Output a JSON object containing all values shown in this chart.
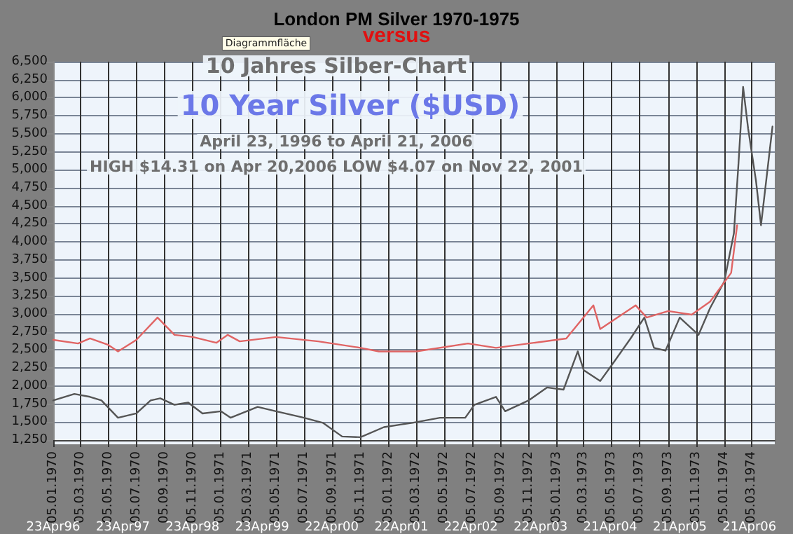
{
  "chart_data": {
    "type": "line",
    "title": "London PM Silver 1970-1975",
    "subtitle": "versus",
    "annotations": [
      "Diagrammfläche",
      "10 Jahres Silber-Chart",
      "10 Year Silver ($USD)",
      "April 23, 1996 to April 21, 2006",
      "HIGH $14.31 on Apr 20,2006 LOW $4.07 on Nov 22, 2001"
    ],
    "series": [
      {
        "color": "#555555",
        "x": [
          "1970-01-05",
          "1970-02-20",
          "1970-03-26",
          "1970-04-20",
          "1970-05-26",
          "1970-07-05",
          "1970-08-05",
          "1970-08-26",
          "1970-09-26",
          "1970-10-26",
          "1970-11-26",
          "1971-01-05",
          "1971-01-26",
          "1971-03-26",
          "1971-05-05",
          "1971-07-05",
          "1971-08-15",
          "1971-09-26",
          "1971-11-05",
          "1971-12-26",
          "1972-02-05",
          "1972-02-26",
          "1972-04-26",
          "1972-06-20",
          "1972-07-10",
          "1972-08-26",
          "1972-09-15",
          "1972-11-05",
          "1972-12-15",
          "1973-01-20",
          "1973-02-20",
          "1973-03-05",
          "1973-04-10",
          "1973-05-05",
          "1973-06-15",
          "1973-07-15",
          "1973-08-05",
          "1973-08-30",
          "1973-09-30",
          "1973-11-10",
          "1973-12-05",
          "1974-01-05",
          "1974-01-26",
          "1974-02-05",
          "1974-02-15",
          "1974-02-26",
          "1974-03-15",
          "1974-03-26",
          "1974-04-20"
        ],
        "values": [
          1800,
          1890,
          1850,
          1800,
          1560,
          1620,
          1800,
          1830,
          1740,
          1770,
          1620,
          1650,
          1560,
          1710,
          1650,
          1560,
          1490,
          1300,
          1290,
          1430,
          1470,
          1490,
          1560,
          1560,
          1740,
          1850,
          1650,
          1800,
          1980,
          1950,
          2480,
          2220,
          2070,
          2290,
          2660,
          2950,
          2530,
          2490,
          2950,
          2710,
          3080,
          3450,
          4120,
          5090,
          6150,
          5570,
          4850,
          4230,
          5600
        ]
      },
      {
        "color": "#e06464",
        "x": [
          "1970-01-05",
          "1970-02-28",
          "1970-03-26",
          "1970-05-05",
          "1970-05-26",
          "1970-07-05",
          "1970-08-20",
          "1970-09-26",
          "1970-11-05",
          "1970-12-26",
          "1971-01-20",
          "1971-02-15",
          "1971-05-05",
          "1971-08-05",
          "1971-11-05",
          "1971-12-15",
          "1972-02-05",
          "1972-03-05",
          "1972-06-26",
          "1972-08-26",
          "1972-11-05",
          "1973-01-26",
          "1973-03-26",
          "1973-04-10",
          "1973-06-26",
          "1973-07-20",
          "1973-09-05",
          "1973-10-26",
          "1973-12-05",
          "1974-01-20",
          "1974-02-02"
        ],
        "values": [
          2640,
          2590,
          2660,
          2570,
          2480,
          2640,
          2950,
          2710,
          2680,
          2600,
          2710,
          2620,
          2680,
          2620,
          2530,
          2480,
          2480,
          2480,
          2590,
          2530,
          2590,
          2660,
          3120,
          2790,
          3120,
          2950,
          3040,
          2990,
          3170,
          3570,
          4230
        ]
      }
    ],
    "xlim": [
      "1970-01-05",
      "1974-04-25"
    ],
    "xticks": [
      {
        "value": "1970-01-05",
        "label": "05.01.1970"
      },
      {
        "value": "1970-03-05",
        "label": "05.03.1970"
      },
      {
        "value": "1970-05-05",
        "label": "05.05.1970"
      },
      {
        "value": "1970-07-05",
        "label": "05.07.1970"
      },
      {
        "value": "1970-09-05",
        "label": "05.09.1970"
      },
      {
        "value": "1970-11-05",
        "label": "05.11.1970"
      },
      {
        "value": "1971-01-05",
        "label": "05.01.1971"
      },
      {
        "value": "1971-03-05",
        "label": "05.03.1971"
      },
      {
        "value": "1971-05-05",
        "label": "05.05.1971"
      },
      {
        "value": "1971-07-05",
        "label": "05.07.1971"
      },
      {
        "value": "1971-09-05",
        "label": "05.09.1971"
      },
      {
        "value": "1971-11-05",
        "label": "05.11.1971"
      },
      {
        "value": "1972-01-05",
        "label": "05.01.1972"
      },
      {
        "value": "1972-03-05",
        "label": "05.03.1972"
      },
      {
        "value": "1972-05-05",
        "label": "05.05.1972"
      },
      {
        "value": "1972-07-05",
        "label": "05.07.1972"
      },
      {
        "value": "1972-09-05",
        "label": "05.09.1972"
      },
      {
        "value": "1972-11-05",
        "label": "05.11.1972"
      },
      {
        "value": "1973-01-05",
        "label": "05.01.1973"
      },
      {
        "value": "1973-03-05",
        "label": "05.03.1973"
      },
      {
        "value": "1973-05-05",
        "label": "05.05.1973"
      },
      {
        "value": "1973-07-05",
        "label": "05.07.1973"
      },
      {
        "value": "1973-09-05",
        "label": "05.09.1973"
      },
      {
        "value": "1973-11-05",
        "label": "05.11.1973"
      },
      {
        "value": "1974-01-05",
        "label": "05.01.1974"
      },
      {
        "value": "1974-03-05",
        "label": "05.03.1974"
      }
    ],
    "x2lim": [
      "1996-04-23",
      "2006-09-01"
    ],
    "x2ticks": [
      {
        "value": "1996-04-23",
        "label": "23Apr96"
      },
      {
        "value": "1997-04-23",
        "label": "23Apr97"
      },
      {
        "value": "1998-04-23",
        "label": "23Apr98"
      },
      {
        "value": "1999-04-23",
        "label": "23Apr99"
      },
      {
        "value": "2000-04-22",
        "label": "22Apr00"
      },
      {
        "value": "2001-04-22",
        "label": "22Apr01"
      },
      {
        "value": "2002-04-22",
        "label": "22Apr02"
      },
      {
        "value": "2003-04-22",
        "label": "22Apr03"
      },
      {
        "value": "2004-04-21",
        "label": "21Apr04"
      },
      {
        "value": "2005-04-21",
        "label": "21Apr05"
      },
      {
        "value": "2006-04-21",
        "label": "21Apr06"
      }
    ],
    "ylim": [
      1250,
      6500
    ],
    "yticks": [
      {
        "value": 1250,
        "label": "1,250"
      },
      {
        "value": 1500,
        "label": "1,500"
      },
      {
        "value": 1750,
        "label": "1,750"
      },
      {
        "value": 2000,
        "label": "2,000"
      },
      {
        "value": 2250,
        "label": "2,250"
      },
      {
        "value": 2500,
        "label": "2,500"
      },
      {
        "value": 2750,
        "label": "2,750"
      },
      {
        "value": 3000,
        "label": "3,000"
      },
      {
        "value": 3250,
        "label": "3,250"
      },
      {
        "value": 3500,
        "label": "3,500"
      },
      {
        "value": 3750,
        "label": "3,750"
      },
      {
        "value": 4000,
        "label": "4,000"
      },
      {
        "value": 4250,
        "label": "4,250"
      },
      {
        "value": 4500,
        "label": "4,500"
      },
      {
        "value": 4750,
        "label": "4,750"
      },
      {
        "value": 5000,
        "label": "5,000"
      },
      {
        "value": 5250,
        "label": "5,250"
      },
      {
        "value": 5500,
        "label": "5,500"
      },
      {
        "value": 5750,
        "label": "5,750"
      },
      {
        "value": 6000,
        "label": "6,000"
      },
      {
        "value": 6250,
        "label": "6,250"
      },
      {
        "value": 6500,
        "label": "6,500"
      }
    ],
    "grid": true,
    "marker": "none",
    "line_style": "solid"
  }
}
